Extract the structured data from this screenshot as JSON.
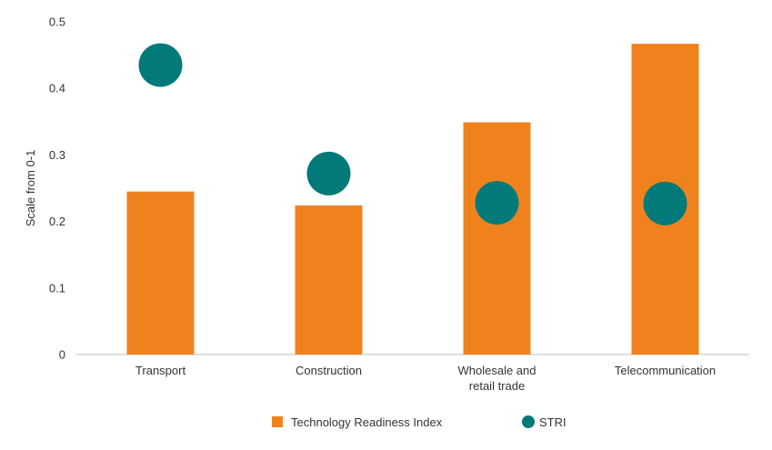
{
  "chart_data": {
    "type": "bar",
    "title": "",
    "xlabel": "",
    "ylabel": "Scale from 0-1",
    "ylim": [
      0,
      0.5
    ],
    "yticks": [
      "0",
      "0.1",
      "0.2",
      "0.3",
      "0.4",
      "0.5"
    ],
    "grid": false,
    "categories": [
      [
        "Transport"
      ],
      [
        "Construction"
      ],
      [
        "Wholesale and",
        "retail trade"
      ],
      [
        "Telecommunication"
      ]
    ],
    "series": [
      {
        "name": "Technology Readiness Index",
        "type": "bar",
        "color": "#F0821E",
        "values": [
          0.245,
          0.224,
          0.349,
          0.467
        ]
      },
      {
        "name": "STRI",
        "type": "marker",
        "color": "#037A7A",
        "values": [
          0.435,
          0.272,
          0.228,
          0.227
        ]
      }
    ],
    "legend": "bottom-center"
  }
}
